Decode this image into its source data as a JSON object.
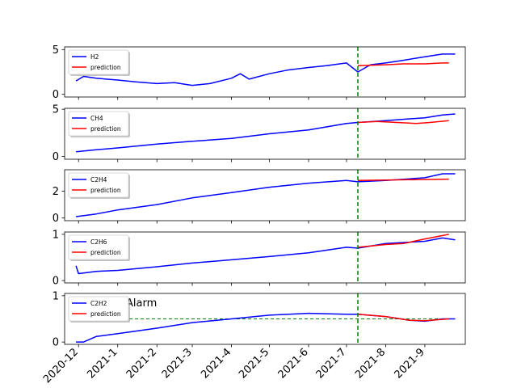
{
  "chart_data": {
    "type": "line",
    "shared_x": true,
    "x_ticks": [
      "2020-12",
      "2021-1",
      "2021-2",
      "2021-3",
      "2021-4",
      "2021-5",
      "2021-6",
      "2021-7",
      "2021-8",
      "2021-9"
    ],
    "x_range": [
      "2020-11-20",
      "2021-10-03"
    ],
    "split_date": "2021-07-10",
    "subplots": [
      {
        "ylim": [
          -0.3,
          5.3
        ],
        "yticks": [
          0,
          5
        ],
        "legend": [
          "H2",
          "prediction"
        ],
        "legend_loc": "upper-left",
        "series": [
          {
            "name": "H2",
            "color": "#0000ff",
            "x": [
              "2020-11-29",
              "2020-12-05",
              "2020-12-15",
              "2021-01-01",
              "2021-01-15",
              "2021-02-01",
              "2021-02-15",
              "2021-03-01",
              "2021-03-15",
              "2021-04-01",
              "2021-04-08",
              "2021-04-15",
              "2021-05-01",
              "2021-05-15",
              "2021-06-01",
              "2021-06-15",
              "2021-07-01",
              "2021-07-10",
              "2021-07-20",
              "2021-08-01",
              "2021-08-15",
              "2021-09-01",
              "2021-09-15",
              "2021-09-25"
            ],
            "y": [
              1.5,
              2.0,
              1.8,
              1.6,
              1.4,
              1.2,
              1.3,
              1.0,
              1.2,
              1.8,
              2.3,
              1.7,
              2.3,
              2.7,
              3.0,
              3.2,
              3.5,
              2.5,
              3.3,
              3.5,
              3.8,
              4.2,
              4.5,
              4.5
            ]
          },
          {
            "name": "prediction",
            "color": "#ff0000",
            "x": [
              "2021-07-10",
              "2021-08-01",
              "2021-08-15",
              "2021-09-01",
              "2021-09-15",
              "2021-09-20"
            ],
            "y": [
              3.2,
              3.3,
              3.4,
              3.4,
              3.5,
              3.5
            ]
          }
        ]
      },
      {
        "ylim": [
          -0.3,
          5.1
        ],
        "yticks": [
          0,
          5
        ],
        "legend": [
          "CH4",
          "prediction"
        ],
        "legend_loc": "upper-left",
        "series": [
          {
            "name": "CH4",
            "color": "#0000ff",
            "x": [
              "2020-11-29",
              "2020-12-15",
              "2021-01-01",
              "2021-02-01",
              "2021-03-01",
              "2021-04-01",
              "2021-05-01",
              "2021-06-01",
              "2021-07-01",
              "2021-07-10",
              "2021-08-01",
              "2021-09-01",
              "2021-09-15",
              "2021-09-25"
            ],
            "y": [
              0.5,
              0.7,
              0.9,
              1.3,
              1.6,
              1.9,
              2.4,
              2.8,
              3.5,
              3.6,
              3.8,
              4.1,
              4.4,
              4.5
            ]
          },
          {
            "name": "prediction",
            "color": "#ff0000",
            "x": [
              "2021-07-10",
              "2021-07-25",
              "2021-08-10",
              "2021-08-25",
              "2021-09-05",
              "2021-09-20"
            ],
            "y": [
              3.6,
              3.7,
              3.6,
              3.5,
              3.6,
              3.8
            ]
          }
        ]
      },
      {
        "ylim": [
          -0.2,
          3.6
        ],
        "yticks": [
          0,
          2
        ],
        "legend": [
          "C2H4",
          "prediction"
        ],
        "legend_loc": "upper-left",
        "series": [
          {
            "name": "C2H4",
            "color": "#0000ff",
            "x": [
              "2020-11-29",
              "2020-12-15",
              "2021-01-01",
              "2021-02-01",
              "2021-03-01",
              "2021-04-01",
              "2021-05-01",
              "2021-06-01",
              "2021-07-01",
              "2021-07-10",
              "2021-08-01",
              "2021-09-01",
              "2021-09-15",
              "2021-09-25"
            ],
            "y": [
              0.1,
              0.3,
              0.6,
              1.0,
              1.5,
              1.9,
              2.3,
              2.6,
              2.8,
              2.7,
              2.8,
              3.0,
              3.3,
              3.3
            ]
          },
          {
            "name": "prediction",
            "color": "#ff0000",
            "x": [
              "2021-07-10",
              "2021-09-20"
            ],
            "y": [
              2.8,
              2.9
            ]
          }
        ]
      },
      {
        "ylim": [
          -0.05,
          1.05
        ],
        "yticks": [
          0,
          1
        ],
        "legend": [
          "C2H6",
          "prediction"
        ],
        "legend_loc": "upper-left",
        "series": [
          {
            "name": "C2H6",
            "color": "#0000ff",
            "x": [
              "2020-11-29",
              "2020-12-01",
              "2020-12-15",
              "2021-01-01",
              "2021-02-01",
              "2021-03-01",
              "2021-04-01",
              "2021-05-01",
              "2021-06-01",
              "2021-07-01",
              "2021-07-10",
              "2021-08-01",
              "2021-09-01",
              "2021-09-15",
              "2021-09-25"
            ],
            "y": [
              0.32,
              0.15,
              0.2,
              0.22,
              0.3,
              0.38,
              0.45,
              0.52,
              0.6,
              0.72,
              0.7,
              0.8,
              0.85,
              0.92,
              0.88
            ]
          },
          {
            "name": "prediction",
            "color": "#ff0000",
            "x": [
              "2021-07-10",
              "2021-08-01",
              "2021-08-15",
              "2021-09-01",
              "2021-09-20"
            ],
            "y": [
              0.72,
              0.78,
              0.8,
              0.9,
              1.0
            ]
          }
        ]
      },
      {
        "ylim": [
          -0.05,
          1.05
        ],
        "yticks": [
          0,
          1
        ],
        "legend": [
          "C2H2",
          "prediction"
        ],
        "legend_loc": "upper-left",
        "annotation": "Alarm",
        "threshold": 0.5,
        "series": [
          {
            "name": "C2H2",
            "color": "#0000ff",
            "x": [
              "2020-11-29",
              "2020-12-05",
              "2020-12-15",
              "2021-01-01",
              "2021-02-01",
              "2021-03-01",
              "2021-04-01",
              "2021-05-01",
              "2021-06-01",
              "2021-07-01",
              "2021-07-10",
              "2021-08-01",
              "2021-08-20",
              "2021-09-01",
              "2021-09-15",
              "2021-09-25"
            ],
            "y": [
              0.0,
              0.0,
              0.12,
              0.18,
              0.3,
              0.42,
              0.5,
              0.58,
              0.62,
              0.6,
              0.6,
              0.55,
              0.47,
              0.45,
              0.5,
              0.5
            ]
          },
          {
            "name": "prediction",
            "color": "#ff0000",
            "x": [
              "2021-07-10",
              "2021-08-01",
              "2021-08-20",
              "2021-09-01",
              "2021-09-20"
            ],
            "y": [
              0.6,
              0.55,
              0.47,
              0.46,
              0.5
            ]
          }
        ]
      }
    ]
  }
}
